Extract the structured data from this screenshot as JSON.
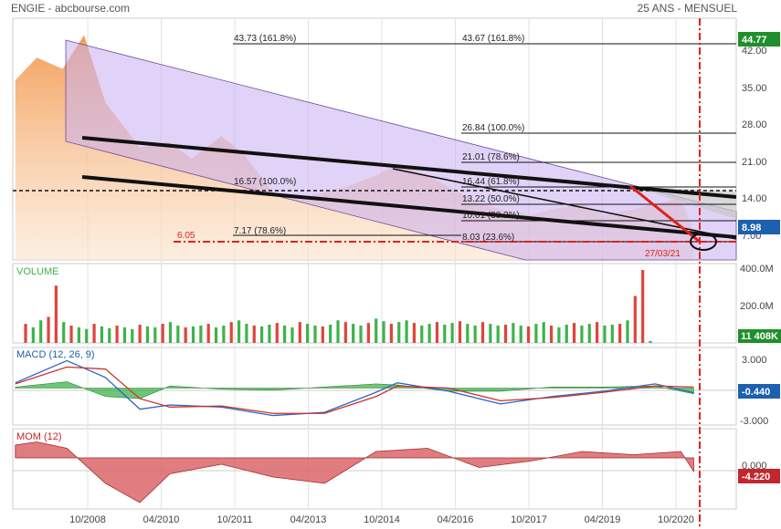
{
  "header": {
    "source": "ENGIE - abcbourse.com",
    "period": "25 ANS - MENSUEL"
  },
  "colors": {
    "price_fill": "#f6a96b",
    "channel_fill": "#d9c3f5",
    "up": "#3fb24a",
    "down": "#e0443c",
    "badge_green": "#1f8f2c",
    "badge_red": "#c1272d",
    "badge_blue": "#1d5fb0",
    "macd_line": "#2a64c8",
    "signal_line": "#c8332d",
    "grid": "#e5e5e5"
  },
  "x_axis": {
    "labels": [
      "10/2008",
      "04/2010",
      "10/2011",
      "04/2013",
      "10/2014",
      "04/2016",
      "10/2017",
      "04/2019",
      "10/2020"
    ]
  },
  "price_panel": {
    "y_ticks": [
      "42.00",
      "35.00",
      "28.00",
      "21.00",
      "14.00",
      "7.00"
    ],
    "fib_labels": [
      "43.73  (161.8%)",
      "43.67  (161.8%)",
      "26.84  (100.0%)",
      "21.01  (78.6%)",
      "16.44  (61.8%)",
      "16.57  (100.0%)",
      "13.22  (50.0%)",
      "10.01  (38.2%)",
      "7.17  (78.6%)",
      "8.03  (23.6%)",
      "6.05"
    ],
    "target_date": "27/03/21",
    "badge_high": "44.77",
    "badge_last": "8.98"
  },
  "volume_panel": {
    "title": "VOLUME",
    "y_ticks": [
      "400.0M",
      "200.0M"
    ],
    "badge": "11 408K"
  },
  "macd_panel": {
    "title": "MACD (12, 26, 9)",
    "y_ticks": [
      "3.000",
      "-3.000"
    ],
    "badge": "-0.440"
  },
  "mom_panel": {
    "title": "MOM (12)",
    "y_ticks": [
      "0.000"
    ],
    "badge": "-4.220"
  },
  "chart_data": [
    {
      "type": "area",
      "title": "ENGIE - abcbourse.com",
      "x": [
        "2007-01",
        "2007-06",
        "2007-12",
        "2008-05",
        "2008-10",
        "2009-06",
        "2010-01",
        "2010-06",
        "2011-01",
        "2011-06",
        "2012-01",
        "2012-06",
        "2013-01",
        "2013-06",
        "2014-01",
        "2014-06",
        "2015-01",
        "2015-06",
        "2016-01",
        "2016-06",
        "2017-01",
        "2017-06",
        "2018-01",
        "2018-06",
        "2019-01",
        "2019-06",
        "2019-12",
        "2020-03"
      ],
      "values": [
        36,
        40,
        38,
        44,
        32,
        24,
        25,
        22,
        26,
        23,
        16,
        15,
        16,
        17,
        19,
        21,
        19,
        17,
        14,
        13,
        12,
        13,
        14,
        12,
        13,
        14,
        15,
        9
      ],
      "ylabel": "",
      "ylim": [
        4,
        47
      ]
    },
    {
      "type": "bar",
      "title": "VOLUME",
      "note": "monthly volume, up months green, down months red",
      "values_millions": [
        110,
        90,
        130,
        150,
        330,
        120,
        100,
        90,
        80,
        110,
        95,
        85,
        100,
        90,
        80,
        105,
        95,
        90,
        110,
        120,
        100,
        90,
        95,
        100,
        110,
        90,
        100,
        120,
        130,
        110,
        100,
        95,
        105,
        115,
        100,
        90,
        120,
        110,
        100,
        95,
        105,
        130,
        120,
        110,
        100,
        115,
        140,
        125,
        110,
        120,
        130,
        115,
        100,
        110,
        120,
        105,
        115,
        125,
        110,
        100,
        120,
        110,
        100,
        105,
        115,
        100,
        95,
        110,
        120,
        100,
        90,
        105,
        115,
        100,
        110,
        120,
        100,
        105,
        110,
        130,
        270,
        420,
        11
      ],
      "ylim": [
        0,
        420
      ]
    },
    {
      "type": "line",
      "title": "MACD (12, 26, 9)",
      "x": [
        "2007-01",
        "2008-01",
        "2008-10",
        "2009-06",
        "2010-01",
        "2011-01",
        "2012-01",
        "2013-01",
        "2014-01",
        "2014-06",
        "2015-06",
        "2016-06",
        "2017-06",
        "2018-06",
        "2019-06",
        "2020-03"
      ],
      "series": [
        {
          "name": "MACD",
          "values": [
            0.5,
            2.6,
            1.0,
            -2.0,
            -1.6,
            -1.8,
            -2.6,
            -2.3,
            -0.4,
            0.5,
            -0.3,
            -1.5,
            -0.8,
            -0.3,
            0.4,
            -0.44
          ]
        },
        {
          "name": "Signal",
          "values": [
            0.4,
            2.0,
            1.8,
            -1.0,
            -1.8,
            -1.7,
            -2.4,
            -2.4,
            -0.8,
            0.2,
            0.0,
            -1.2,
            -0.9,
            -0.4,
            0.2,
            0.1
          ]
        }
      ],
      "ylim": [
        -3.5,
        3.5
      ]
    },
    {
      "type": "area",
      "title": "MOM (12)",
      "x": [
        "2007-01",
        "2007-06",
        "2008-01",
        "2008-10",
        "2009-06",
        "2010-01",
        "2011-01",
        "2012-01",
        "2013-01",
        "2014-01",
        "2015-01",
        "2016-01",
        "2017-01",
        "2018-01",
        "2019-01",
        "2019-12",
        "2020-03"
      ],
      "values": [
        4,
        5,
        3,
        -8,
        -14,
        -5,
        -2,
        -6,
        -8,
        2,
        3,
        -3,
        -1,
        2,
        1,
        2,
        -4.22
      ],
      "ylim": [
        -16,
        8
      ]
    }
  ]
}
